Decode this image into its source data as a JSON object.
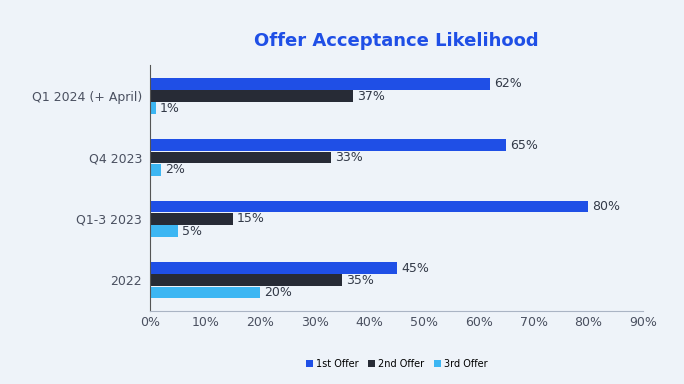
{
  "chart_data": {
    "type": "bar",
    "title": "Offer Acceptance Likelihood",
    "orientation": "horizontal",
    "categories": [
      "Q1 2024 (+ April)",
      "Q4 2023",
      "Q1-3 2023",
      "2022"
    ],
    "series": [
      {
        "name": "1st Offer",
        "color": "#1f4fe6",
        "values": [
          62,
          65,
          80,
          45
        ],
        "value_labels": [
          "62%",
          "65%",
          "80%",
          "45%"
        ]
      },
      {
        "name": "2nd Offer",
        "color": "#272b36",
        "values": [
          37,
          33,
          15,
          35
        ],
        "value_labels": [
          "37%",
          "33%",
          "15%",
          "35%"
        ]
      },
      {
        "name": "3rd Offer",
        "color": "#3cb6f3",
        "values": [
          1,
          2,
          5,
          20
        ],
        "value_labels": [
          "1%",
          "2%",
          "5%",
          "20%"
        ]
      }
    ],
    "xlim": [
      0,
      90
    ],
    "xticks": [
      {
        "value": 0,
        "label": "0%"
      },
      {
        "value": 10,
        "label": "10%"
      },
      {
        "value": 20,
        "label": "20%"
      },
      {
        "value": 30,
        "label": "30%"
      },
      {
        "value": 40,
        "label": "40%"
      },
      {
        "value": 50,
        "label": "50%"
      },
      {
        "value": 60,
        "label": "60%"
      },
      {
        "value": 70,
        "label": "70%"
      },
      {
        "value": 80,
        "label": "80%"
      },
      {
        "value": 90,
        "label": "90%"
      }
    ],
    "grid": false,
    "legend": "lower center",
    "data_labels": true
  }
}
